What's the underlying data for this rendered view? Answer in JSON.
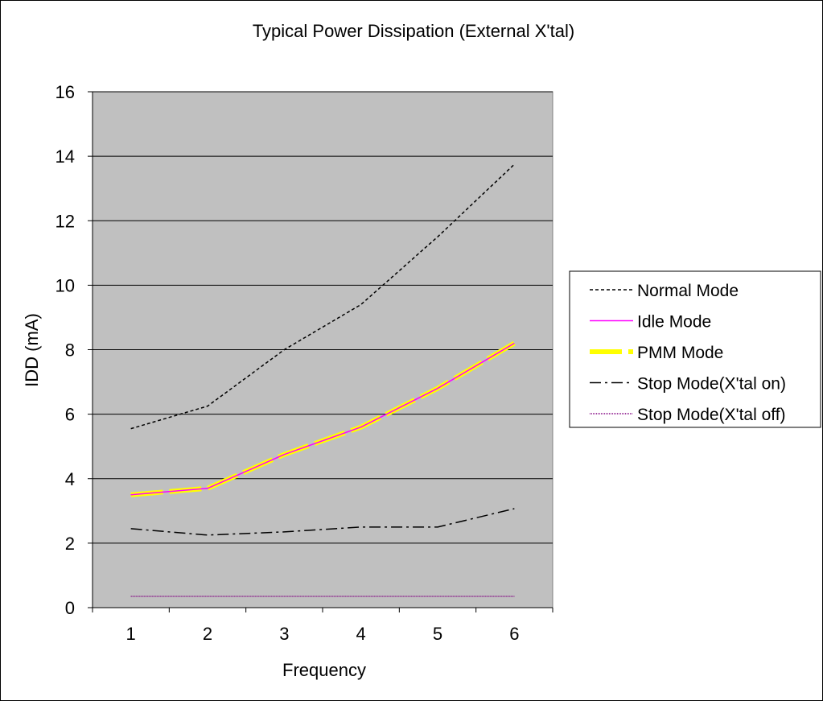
{
  "chart_data": {
    "type": "line",
    "title": "Typical Power Dissipation (External X'tal)",
    "xlabel": "Frequency",
    "ylabel": "IDD (mA)",
    "categories": [
      "1",
      "2",
      "3",
      "4",
      "5",
      "6"
    ],
    "yticks": [
      "0",
      "2",
      "4",
      "6",
      "8",
      "10",
      "12",
      "14",
      "16"
    ],
    "ylim": [
      0,
      16
    ],
    "grid": true,
    "plot_background": "#c0c0c0",
    "legend_position": "right",
    "series": [
      {
        "name": "Normal Mode",
        "values": [
          5.55,
          6.25,
          8.0,
          9.4,
          11.5,
          13.75
        ],
        "color": "#000000",
        "style": "dashed"
      },
      {
        "name": "Idle Mode",
        "values": [
          3.5,
          3.7,
          4.75,
          5.6,
          6.8,
          8.2
        ],
        "color": "#ff00ff",
        "style": "solid"
      },
      {
        "name": "PMM Mode",
        "values": [
          3.5,
          3.7,
          4.75,
          5.6,
          6.8,
          8.2
        ],
        "color": "#ffff00",
        "style": "thick-dashed"
      },
      {
        "name": "Stop Mode(X'tal on)",
        "values": [
          2.45,
          2.25,
          2.35,
          2.5,
          2.5,
          3.07
        ],
        "color": "#000000",
        "style": "dash-dot"
      },
      {
        "name": "Stop Mode(X'tal off)",
        "values": [
          0.35,
          0.35,
          0.35,
          0.35,
          0.35,
          0.35
        ],
        "color": "#800080",
        "style": "dotted"
      }
    ]
  }
}
